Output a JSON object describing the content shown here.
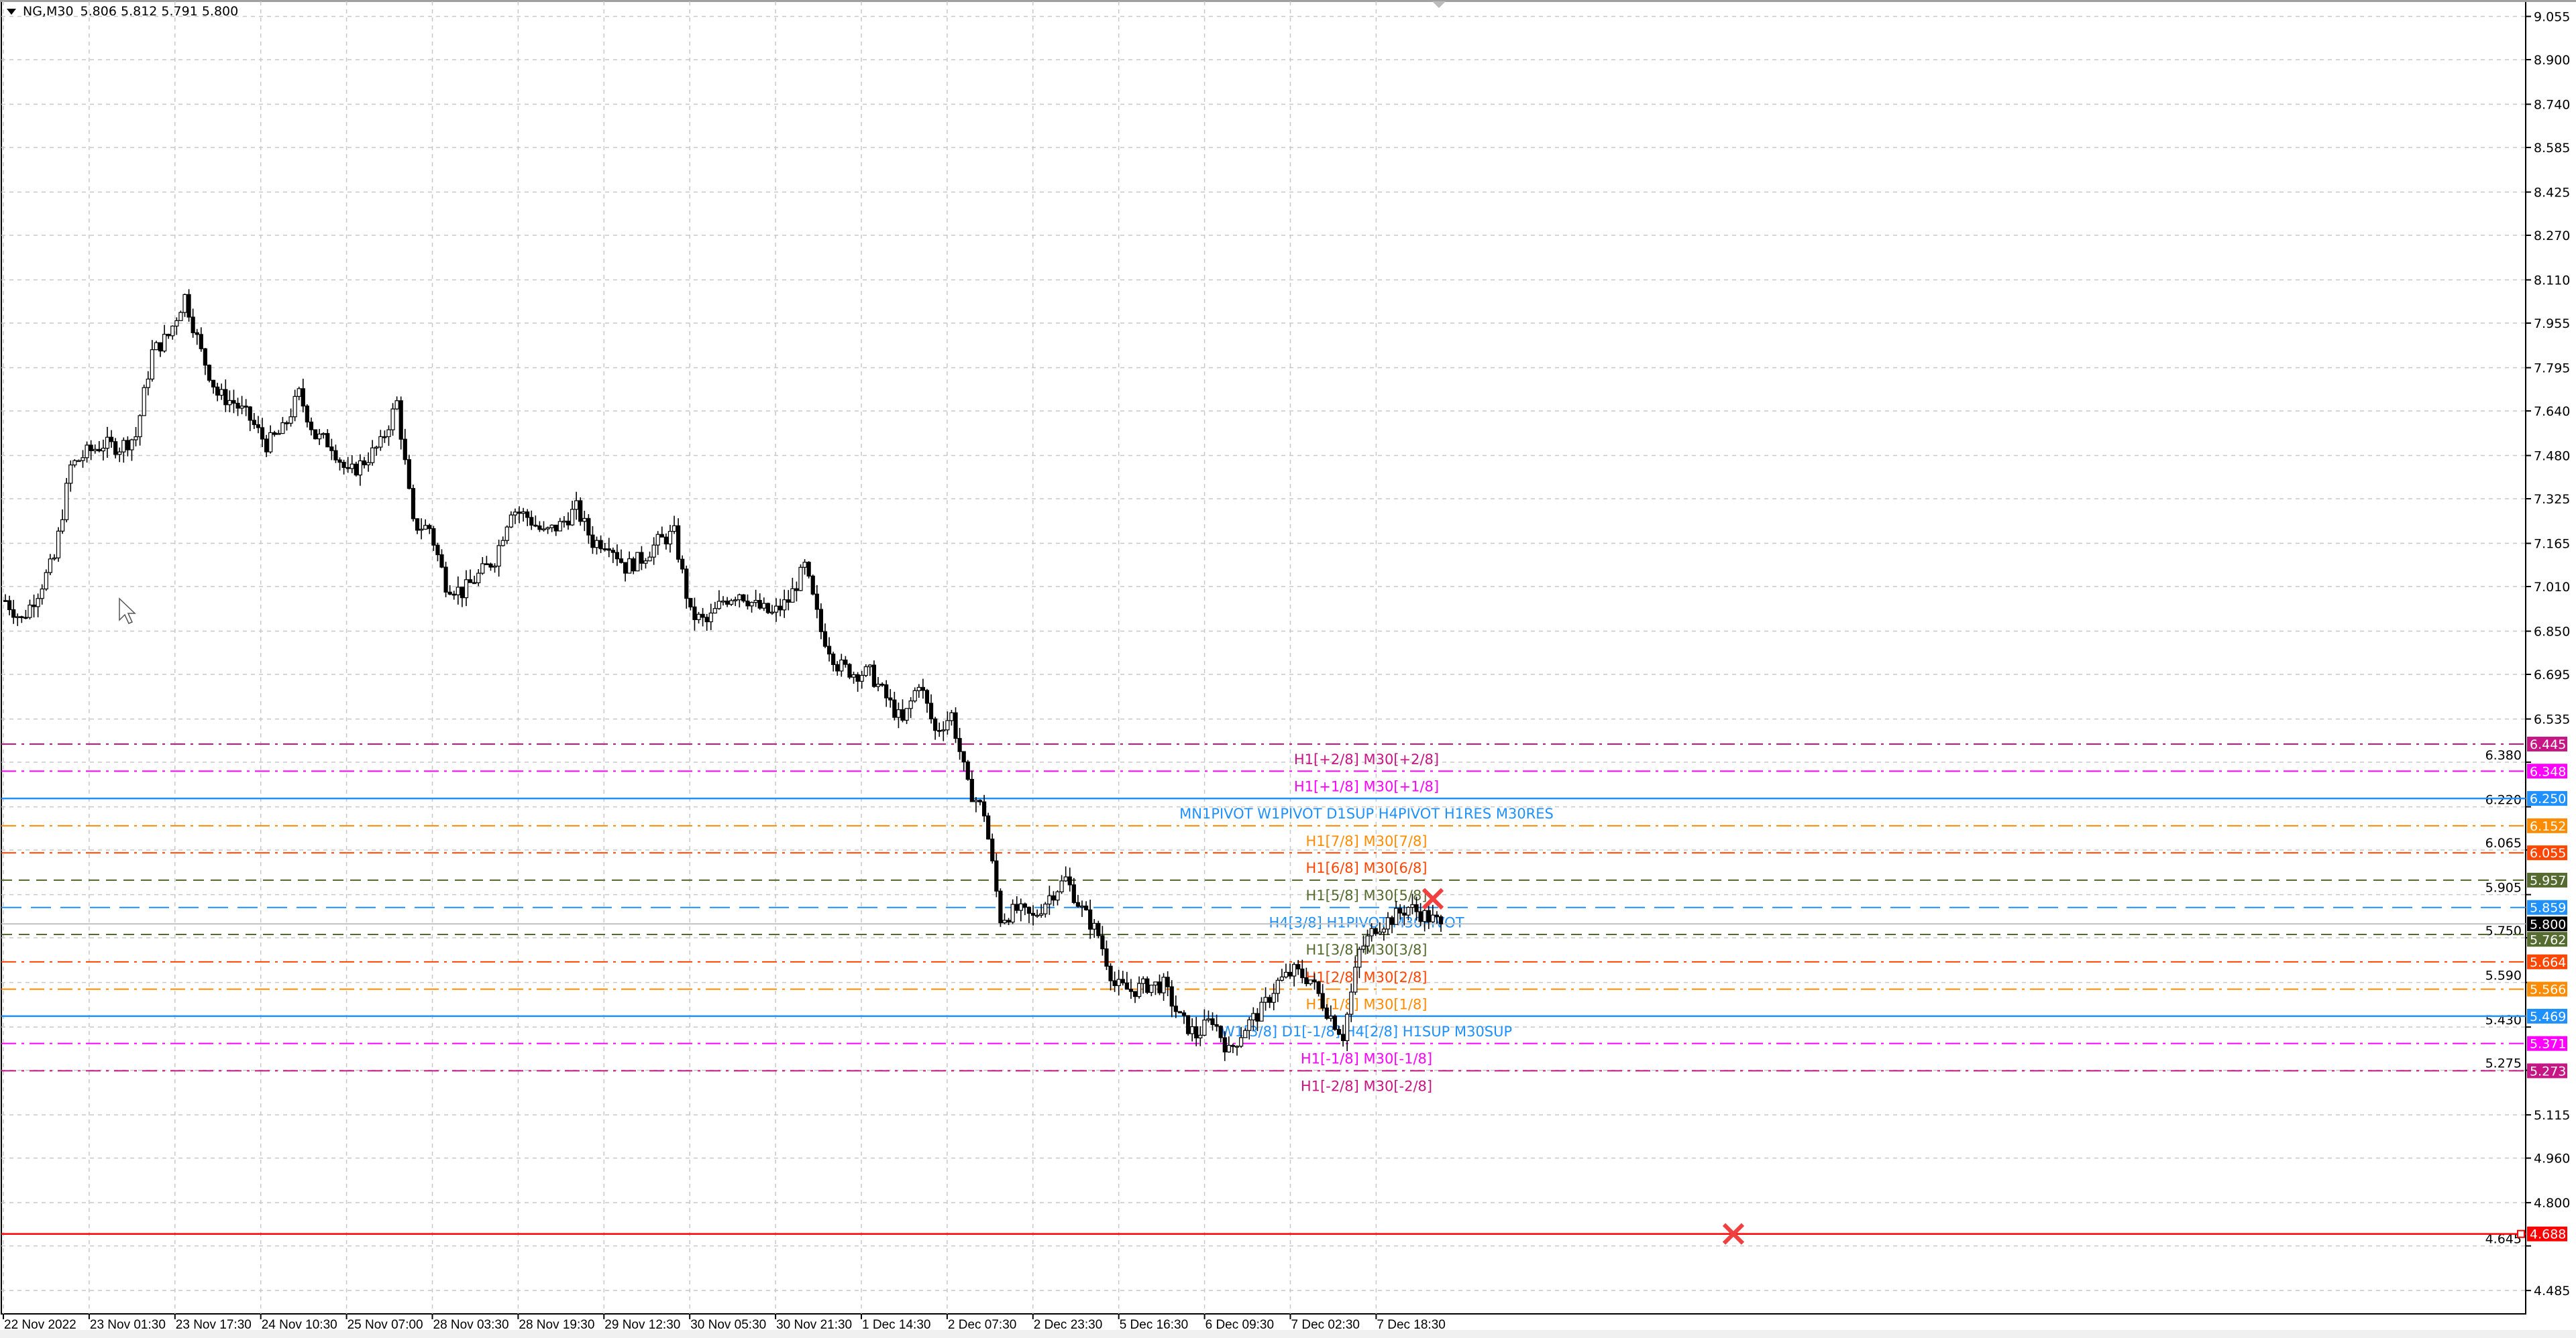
{
  "header": {
    "symbol": "NG,M30",
    "ohlc": "5.806 5.812 5.791 5.800",
    "menu_icon": "triangle-down-icon"
  },
  "chart_data": {
    "type": "candlestick",
    "symbol": "NG",
    "timeframe": "M30",
    "ylim": [
      4.4,
      9.1
    ],
    "grid": true,
    "y_ticks": [
      "9.055",
      "8.900",
      "8.740",
      "8.585",
      "8.425",
      "8.270",
      "8.110",
      "7.955",
      "7.795",
      "7.640",
      "7.480",
      "7.325",
      "7.165",
      "7.010",
      "6.850",
      "6.695",
      "6.535",
      "6.380",
      "6.220",
      "6.065",
      "5.905",
      "5.750",
      "5.590",
      "5.430",
      "5.275",
      "5.115",
      "4.960",
      "4.800",
      "4.645",
      "4.485"
    ],
    "x_ticks": [
      "22 Nov 2022",
      "23 Nov 01:30",
      "23 Nov 17:30",
      "24 Nov 10:30",
      "25 Nov 07:00",
      "28 Nov 03:30",
      "28 Nov 19:30",
      "29 Nov 12:30",
      "30 Nov 05:30",
      "30 Nov 21:30",
      "1 Dec 14:30",
      "2 Dec 07:30",
      "2 Dec 23:30",
      "5 Dec 16:30",
      "6 Dec 09:30",
      "7 Dec 02:30",
      "7 Dec 18:30"
    ],
    "close_path": [
      6.96,
      6.89,
      6.99,
      7.11,
      7.44,
      7.49,
      7.52,
      7.51,
      7.55,
      7.85,
      7.91,
      8.05,
      7.85,
      7.7,
      7.67,
      7.61,
      7.52,
      7.57,
      7.7,
      7.55,
      7.52,
      7.41,
      7.46,
      7.52,
      7.67,
      7.23,
      7.22,
      7.02,
      6.99,
      7.05,
      7.11,
      7.29,
      7.26,
      7.2,
      7.23,
      7.29,
      7.17,
      7.17,
      7.08,
      7.11,
      7.17,
      7.2,
      6.91,
      6.88,
      6.96,
      6.99,
      6.94,
      6.91,
      6.96,
      7.08,
      6.85,
      6.73,
      6.7,
      6.7,
      6.61,
      6.52,
      6.67,
      6.49,
      6.55,
      6.29,
      6.2,
      5.82,
      5.85,
      5.82,
      5.9,
      5.96,
      5.85,
      5.76,
      5.58,
      5.56,
      5.58,
      5.58,
      5.46,
      5.4,
      5.46,
      5.34,
      5.43,
      5.49,
      5.59,
      5.63,
      5.6,
      5.49,
      5.4,
      5.7,
      5.79,
      5.82,
      5.86,
      5.83,
      5.8
    ],
    "current_price": {
      "value": 5.8,
      "label": "5.800",
      "color": "#000000"
    },
    "levels": [
      {
        "price": 6.445,
        "label": "H1[+2/8] M30[+2/8]",
        "price_label": "6.445",
        "color": "#C71585",
        "style": "dashdot"
      },
      {
        "price": 6.348,
        "label": "H1[+1/8] M30[+1/8]",
        "price_label": "6.348",
        "color": "#FF00FF",
        "style": "dashdot"
      },
      {
        "price": 6.25,
        "label": "MN1PIVOT W1PIVOT D1SUP H4PIVOT H1RES M30RES",
        "price_label": "6.250",
        "color": "#1E90FF",
        "style": "solid"
      },
      {
        "price": 6.152,
        "label": "H1[7/8] M30[7/8]",
        "price_label": "6.152",
        "color": "#FF8C00",
        "style": "dashdot"
      },
      {
        "price": 6.055,
        "label": "H1[6/8] M30[6/8]",
        "price_label": "6.055",
        "color": "#FF4500",
        "style": "dashdot"
      },
      {
        "price": 5.957,
        "label": "H1[5/8] M30[5/8]",
        "price_label": "5.957",
        "color": "#556B2F",
        "style": "dash"
      },
      {
        "price": 5.859,
        "label": "H4[3/8] H1PIVOT M30PIVOT",
        "price_label": "5.859",
        "color": "#1E90FF",
        "style": "longdash"
      },
      {
        "price": 5.762,
        "label": "H1[3/8] M30[3/8]",
        "price_label": "5.762",
        "color": "#556B2F",
        "style": "dash"
      },
      {
        "price": 5.664,
        "label": "H1[2/8] M30[2/8]",
        "price_label": "5.664",
        "color": "#FF4500",
        "style": "dashdot"
      },
      {
        "price": 5.566,
        "label": "H1[1/8] M30[1/8]",
        "price_label": "5.566",
        "color": "#FF8C00",
        "style": "dashdot"
      },
      {
        "price": 5.469,
        "label": "W1[3/8] D1[-1/8] H4[2/8] H1SUP M30SUP",
        "price_label": "5.469",
        "color": "#1E90FF",
        "style": "solid"
      },
      {
        "price": 5.371,
        "label": "H1[-1/8] M30[-1/8]",
        "price_label": "5.371",
        "color": "#FF00FF",
        "style": "dashdot"
      },
      {
        "price": 5.273,
        "label": "H1[-2/8] M30[-2/8]",
        "price_label": "5.273",
        "color": "#C71585",
        "style": "dashdot"
      },
      {
        "price": 4.688,
        "label": "",
        "price_label": "4.688",
        "color": "#FF0000",
        "style": "solid"
      }
    ],
    "markers": [
      {
        "type": "cross-icon",
        "price": 5.89,
        "color": "#F04040"
      },
      {
        "type": "cross-icon",
        "price": 4.688,
        "color": "#F04040"
      }
    ]
  }
}
